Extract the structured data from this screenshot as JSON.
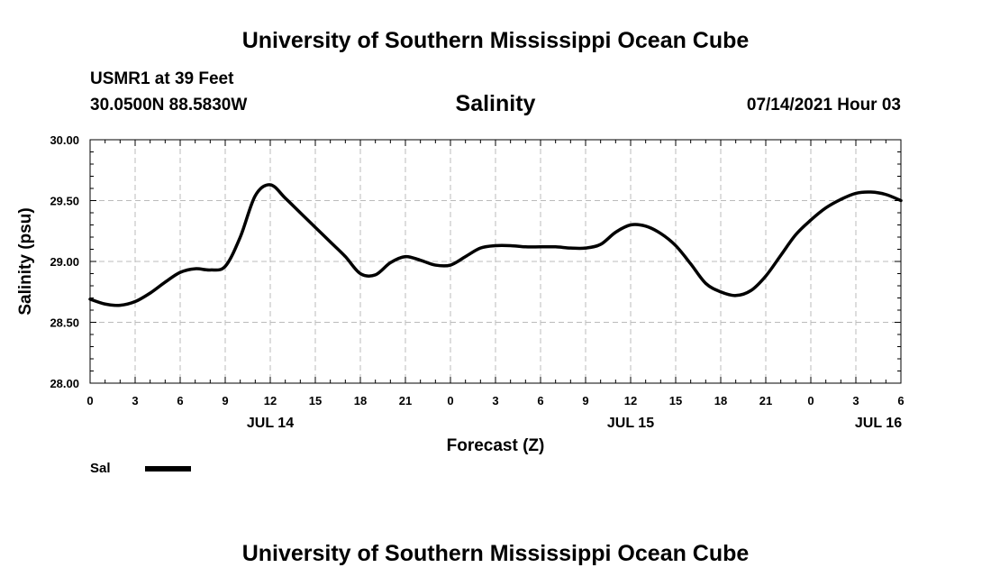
{
  "header": {
    "title_top": "University of Southern Mississippi Ocean Cube",
    "station": "USMR1 at 39 Feet",
    "coords": "30.0500N  88.5830W",
    "run_time": "07/14/2021 Hour 03",
    "title_bottom": "University of Southern Mississippi Ocean Cube"
  },
  "chart_data": {
    "type": "line",
    "title": "Salinity",
    "xlabel": "Forecast (Z)",
    "ylabel": "Salinity (psu)",
    "ylim": [
      28.0,
      30.0
    ],
    "yticks": [
      "28.00",
      "28.50",
      "29.00",
      "29.50",
      "30.00"
    ],
    "xlim": [
      0,
      54
    ],
    "xticks": [
      "0",
      "3",
      "6",
      "9",
      "12",
      "15",
      "18",
      "21",
      "0",
      "3",
      "6",
      "9",
      "12",
      "15",
      "18",
      "21",
      "0",
      "3",
      "6"
    ],
    "day_labels": [
      {
        "label": "JUL 14",
        "at": 12
      },
      {
        "label": "JUL 15",
        "at": 36
      },
      {
        "label": "JUL 16",
        "at": 52.5
      }
    ],
    "grid": true,
    "legend": {
      "position": "bottom-left",
      "entries": [
        "Sal"
      ]
    },
    "line_color": "#000000",
    "series": [
      {
        "name": "Sal",
        "x": [
          0,
          1,
          2,
          3,
          4,
          5,
          6,
          7,
          8,
          9,
          10,
          11,
          12,
          13,
          14,
          15,
          16,
          17,
          18,
          19,
          20,
          21,
          22,
          23,
          24,
          25,
          26,
          27,
          28,
          29,
          30,
          31,
          32,
          33,
          34,
          35,
          36,
          37,
          38,
          39,
          40,
          41,
          42,
          43,
          44,
          45,
          46,
          47,
          48,
          49,
          50,
          51,
          52,
          53,
          54
        ],
        "y": [
          28.69,
          28.65,
          28.64,
          28.67,
          28.74,
          28.83,
          28.91,
          28.94,
          28.93,
          28.96,
          29.2,
          29.54,
          29.63,
          29.52,
          29.4,
          29.28,
          29.16,
          29.04,
          28.9,
          28.89,
          28.99,
          29.04,
          29.01,
          28.97,
          28.97,
          29.04,
          29.11,
          29.13,
          29.13,
          29.12,
          29.12,
          29.12,
          29.11,
          29.11,
          29.14,
          29.24,
          29.3,
          29.29,
          29.23,
          29.13,
          28.98,
          28.82,
          28.75,
          28.72,
          28.76,
          28.88,
          29.05,
          29.22,
          29.34,
          29.44,
          29.51,
          29.56,
          29.57,
          29.55,
          29.5
        ]
      }
    ]
  }
}
